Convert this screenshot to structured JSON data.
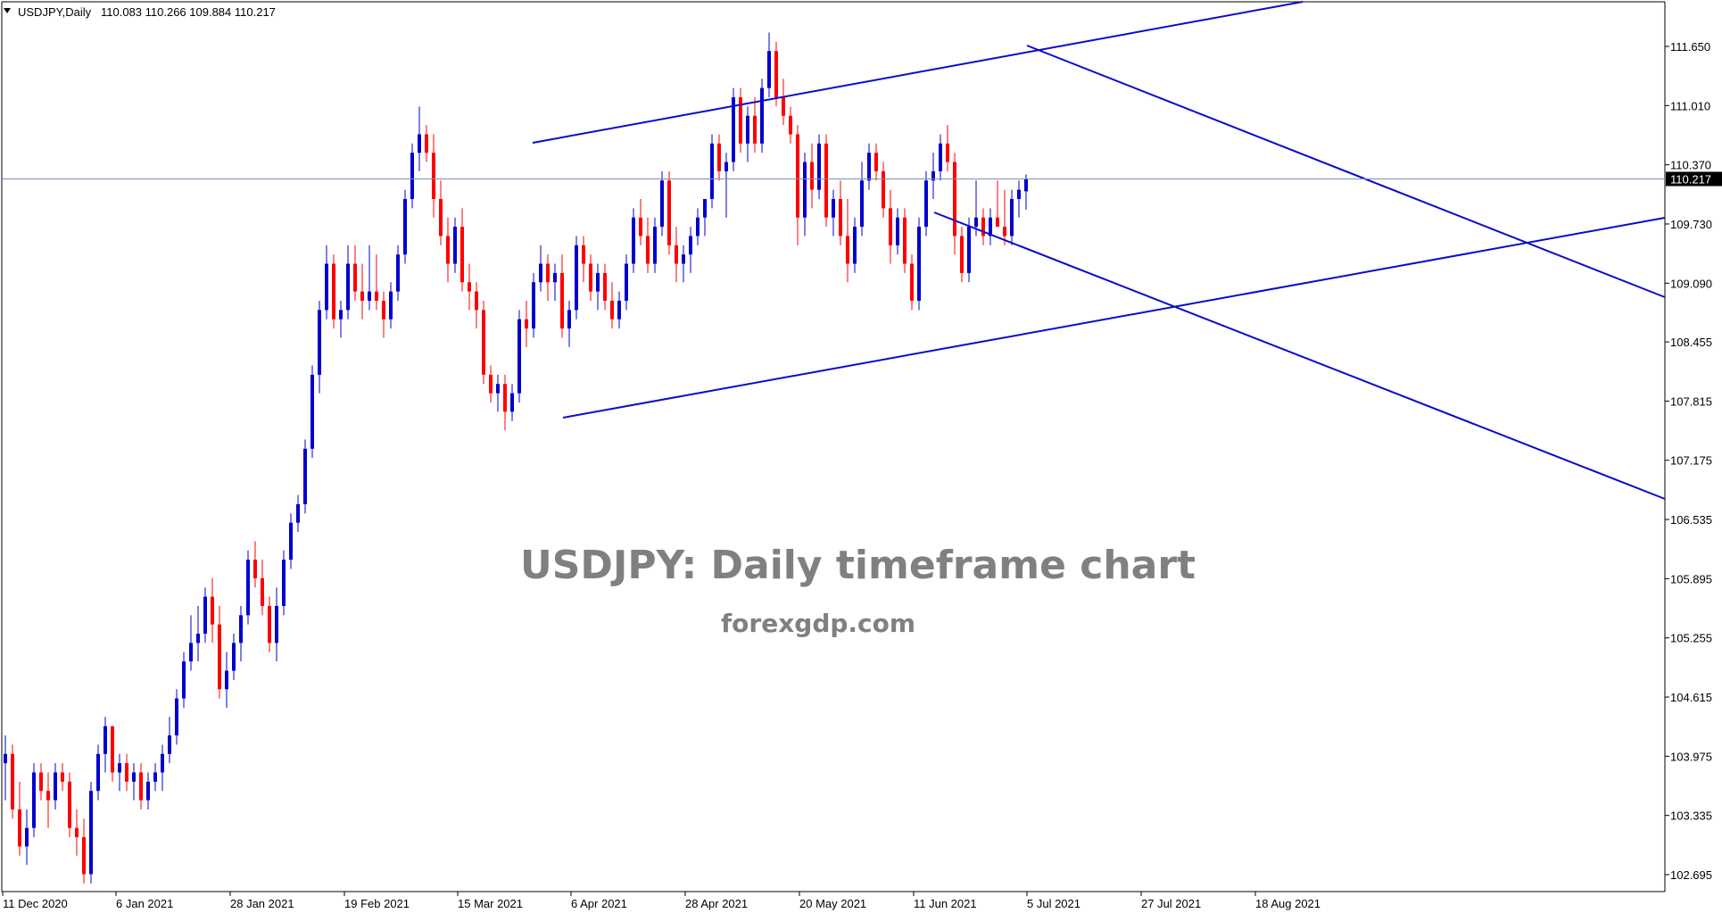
{
  "header": {
    "symbol": "USDJPY,Daily",
    "ohlc": "110.083 110.266 109.884 110.217"
  },
  "watermark": {
    "title": "USDJPY: Daily timeframe chart",
    "site": "forexgdp.com"
  },
  "colors": {
    "bull": "#0000cd",
    "bear": "#ff0000",
    "trendline": "#0a0acc",
    "current_line": "#7b8fb0",
    "axis": "#000000"
  },
  "chart_data": {
    "type": "candlestick",
    "current_price": 110.217,
    "current_price_label": "110.217",
    "y_ticks": [
      "111.650",
      "111.010",
      "110.370",
      "109.730",
      "109.090",
      "108.455",
      "107.815",
      "107.175",
      "106.535",
      "105.895",
      "105.255",
      "104.615",
      "103.975",
      "103.335",
      "102.695"
    ],
    "x_ticks": [
      "11 Dec 2020",
      "6 Jan 2021",
      "28 Jan 2021",
      "19 Feb 2021",
      "15 Mar 2021",
      "6 Apr 2021",
      "28 Apr 2021",
      "20 May 2021",
      "11 Jun 2021",
      "5 Jul 2021",
      "27 Jul 2021",
      "18 Aug 2021"
    ],
    "candles": [
      [
        103.9,
        104.2,
        103.5,
        104.0
      ],
      [
        104.0,
        104.1,
        103.3,
        103.4
      ],
      [
        103.4,
        103.7,
        102.9,
        103.0
      ],
      [
        103.0,
        103.4,
        102.8,
        103.2
      ],
      [
        103.2,
        103.9,
        103.1,
        103.8
      ],
      [
        103.8,
        103.9,
        103.5,
        103.6
      ],
      [
        103.6,
        103.8,
        103.2,
        103.5
      ],
      [
        103.5,
        103.9,
        103.4,
        103.8
      ],
      [
        103.8,
        103.9,
        103.6,
        103.7
      ],
      [
        103.7,
        103.8,
        103.1,
        103.2
      ],
      [
        103.2,
        103.4,
        102.9,
        103.1
      ],
      [
        103.1,
        103.3,
        102.6,
        102.7
      ],
      [
        102.7,
        103.7,
        102.6,
        103.6
      ],
      [
        103.6,
        104.1,
        103.5,
        104.0
      ],
      [
        104.0,
        104.4,
        103.8,
        104.3
      ],
      [
        104.3,
        104.3,
        103.7,
        103.8
      ],
      [
        103.8,
        104.0,
        103.6,
        103.9
      ],
      [
        103.9,
        104.0,
        103.6,
        103.7
      ],
      [
        103.7,
        103.9,
        103.5,
        103.8
      ],
      [
        103.8,
        103.9,
        103.4,
        103.5
      ],
      [
        103.5,
        103.8,
        103.4,
        103.7
      ],
      [
        103.7,
        103.9,
        103.6,
        103.8
      ],
      [
        103.8,
        104.1,
        103.6,
        104.0
      ],
      [
        104.0,
        104.4,
        103.9,
        104.2
      ],
      [
        104.2,
        104.7,
        104.1,
        104.6
      ],
      [
        104.6,
        105.1,
        104.5,
        105.0
      ],
      [
        105.0,
        105.5,
        104.9,
        105.2
      ],
      [
        105.2,
        105.6,
        105.0,
        105.3
      ],
      [
        105.3,
        105.8,
        105.2,
        105.7
      ],
      [
        105.7,
        105.9,
        105.2,
        105.4
      ],
      [
        105.4,
        105.6,
        104.6,
        104.7
      ],
      [
        104.7,
        105.1,
        104.5,
        104.9
      ],
      [
        104.9,
        105.3,
        104.8,
        105.2
      ],
      [
        105.2,
        105.6,
        105.0,
        105.5
      ],
      [
        105.5,
        106.2,
        105.4,
        106.1
      ],
      [
        106.1,
        106.3,
        105.8,
        105.9
      ],
      [
        105.9,
        106.1,
        105.5,
        105.6
      ],
      [
        105.6,
        105.7,
        105.1,
        105.2
      ],
      [
        105.2,
        105.8,
        105.0,
        105.6
      ],
      [
        105.6,
        106.2,
        105.5,
        106.1
      ],
      [
        106.1,
        106.6,
        106.0,
        106.5
      ],
      [
        106.5,
        106.8,
        106.4,
        106.7
      ],
      [
        106.7,
        107.4,
        106.6,
        107.3
      ],
      [
        107.3,
        108.2,
        107.2,
        108.1
      ],
      [
        108.1,
        108.9,
        107.9,
        108.8
      ],
      [
        108.8,
        109.5,
        108.7,
        109.3
      ],
      [
        109.3,
        109.4,
        108.6,
        108.7
      ],
      [
        108.7,
        108.9,
        108.5,
        108.8
      ],
      [
        108.8,
        109.5,
        108.7,
        109.3
      ],
      [
        109.3,
        109.5,
        108.9,
        109.0
      ],
      [
        109.0,
        109.3,
        108.7,
        108.9
      ],
      [
        108.9,
        109.5,
        108.8,
        109.0
      ],
      [
        109.0,
        109.4,
        108.8,
        108.9
      ],
      [
        108.9,
        109.0,
        108.5,
        108.7
      ],
      [
        108.7,
        109.1,
        108.6,
        109.0
      ],
      [
        109.0,
        109.5,
        108.9,
        109.4
      ],
      [
        109.4,
        110.1,
        109.3,
        110.0
      ],
      [
        110.0,
        110.6,
        109.9,
        110.5
      ],
      [
        110.5,
        111.0,
        110.3,
        110.7
      ],
      [
        110.7,
        110.8,
        110.4,
        110.5
      ],
      [
        110.5,
        110.7,
        109.8,
        110.0
      ],
      [
        110.0,
        110.2,
        109.5,
        109.6
      ],
      [
        109.6,
        109.8,
        109.1,
        109.3
      ],
      [
        109.3,
        109.8,
        109.2,
        109.7
      ],
      [
        109.7,
        109.9,
        109.0,
        109.1
      ],
      [
        109.1,
        109.3,
        108.8,
        109.0
      ],
      [
        109.0,
        109.1,
        108.6,
        108.8
      ],
      [
        108.8,
        108.9,
        108.0,
        108.1
      ],
      [
        108.1,
        108.2,
        107.8,
        107.9
      ],
      [
        107.9,
        108.1,
        107.7,
        108.0
      ],
      [
        108.0,
        108.1,
        107.5,
        107.7
      ],
      [
        107.7,
        108.0,
        107.6,
        107.9
      ],
      [
        107.9,
        108.8,
        107.8,
        108.7
      ],
      [
        108.7,
        108.9,
        108.4,
        108.6
      ],
      [
        108.6,
        109.2,
        108.5,
        109.1
      ],
      [
        109.1,
        109.5,
        109.0,
        109.3
      ],
      [
        109.3,
        109.4,
        108.9,
        109.1
      ],
      [
        109.1,
        109.3,
        108.9,
        109.2
      ],
      [
        109.2,
        109.4,
        108.5,
        108.6
      ],
      [
        108.6,
        108.9,
        108.4,
        108.8
      ],
      [
        108.8,
        109.6,
        108.7,
        109.5
      ],
      [
        109.5,
        109.6,
        109.1,
        109.3
      ],
      [
        109.3,
        109.4,
        108.9,
        109.0
      ],
      [
        109.0,
        109.3,
        108.8,
        109.2
      ],
      [
        109.2,
        109.3,
        108.8,
        108.9
      ],
      [
        108.9,
        109.1,
        108.6,
        108.7
      ],
      [
        108.7,
        109.0,
        108.6,
        108.9
      ],
      [
        108.9,
        109.4,
        108.8,
        109.3
      ],
      [
        109.3,
        109.9,
        109.2,
        109.8
      ],
      [
        109.8,
        110.0,
        109.5,
        109.6
      ],
      [
        109.6,
        109.8,
        109.2,
        109.3
      ],
      [
        109.3,
        109.8,
        109.2,
        109.7
      ],
      [
        109.7,
        110.3,
        109.6,
        110.2
      ],
      [
        110.2,
        110.3,
        109.4,
        109.5
      ],
      [
        109.5,
        109.7,
        109.1,
        109.3
      ],
      [
        109.3,
        109.5,
        109.1,
        109.4
      ],
      [
        109.4,
        109.7,
        109.2,
        109.6
      ],
      [
        109.6,
        109.9,
        109.5,
        109.8
      ],
      [
        109.8,
        110.0,
        109.6,
        110.0
      ],
      [
        110.0,
        110.7,
        109.9,
        110.6
      ],
      [
        110.6,
        110.7,
        110.2,
        110.3
      ],
      [
        110.3,
        110.5,
        109.8,
        110.4
      ],
      [
        110.4,
        111.2,
        110.3,
        111.1
      ],
      [
        111.1,
        111.2,
        110.5,
        110.6
      ],
      [
        110.6,
        111.0,
        110.4,
        110.9
      ],
      [
        110.9,
        111.1,
        110.5,
        110.6
      ],
      [
        110.6,
        111.3,
        110.5,
        111.2
      ],
      [
        111.2,
        111.8,
        111.1,
        111.6
      ],
      [
        111.6,
        111.7,
        111.0,
        111.1
      ],
      [
        111.1,
        111.3,
        110.8,
        110.9
      ],
      [
        110.9,
        111.0,
        110.6,
        110.7
      ],
      [
        110.7,
        110.8,
        109.5,
        109.8
      ],
      [
        109.8,
        110.5,
        109.6,
        110.4
      ],
      [
        110.4,
        110.6,
        109.9,
        110.1
      ],
      [
        110.1,
        110.7,
        110.0,
        110.6
      ],
      [
        110.6,
        110.7,
        109.7,
        109.8
      ],
      [
        109.8,
        110.1,
        109.6,
        110.0
      ],
      [
        110.0,
        110.2,
        109.5,
        109.6
      ],
      [
        109.6,
        110.0,
        109.1,
        109.3
      ],
      [
        109.3,
        109.8,
        109.2,
        109.7
      ],
      [
        109.7,
        110.4,
        109.6,
        110.2
      ],
      [
        110.2,
        110.6,
        110.1,
        110.5
      ],
      [
        110.5,
        110.6,
        110.2,
        110.3
      ],
      [
        110.3,
        110.4,
        109.8,
        109.9
      ],
      [
        109.9,
        110.1,
        109.3,
        109.5
      ],
      [
        109.5,
        109.9,
        109.4,
        109.8
      ],
      [
        109.8,
        109.9,
        109.2,
        109.3
      ],
      [
        109.3,
        109.4,
        108.8,
        108.9
      ],
      [
        108.9,
        109.8,
        108.8,
        109.7
      ],
      [
        109.7,
        110.3,
        109.6,
        110.2
      ],
      [
        110.2,
        110.5,
        110.0,
        110.3
      ],
      [
        110.3,
        110.7,
        110.2,
        110.6
      ],
      [
        110.6,
        110.8,
        110.3,
        110.4
      ],
      [
        110.4,
        110.5,
        109.4,
        109.6
      ],
      [
        109.6,
        109.7,
        109.1,
        109.2
      ],
      [
        109.2,
        109.8,
        109.1,
        109.7
      ],
      [
        109.7,
        110.2,
        109.6,
        109.8
      ],
      [
        109.8,
        109.9,
        109.5,
        109.6
      ],
      [
        109.6,
        109.9,
        109.5,
        109.8
      ],
      [
        109.8,
        110.2,
        109.7,
        109.7
      ],
      [
        109.7,
        110.1,
        109.5,
        109.6
      ],
      [
        109.6,
        110.1,
        109.5,
        110.0
      ],
      [
        110.0,
        110.2,
        109.8,
        110.1
      ],
      [
        110.083,
        110.266,
        109.884,
        110.217
      ]
    ]
  }
}
